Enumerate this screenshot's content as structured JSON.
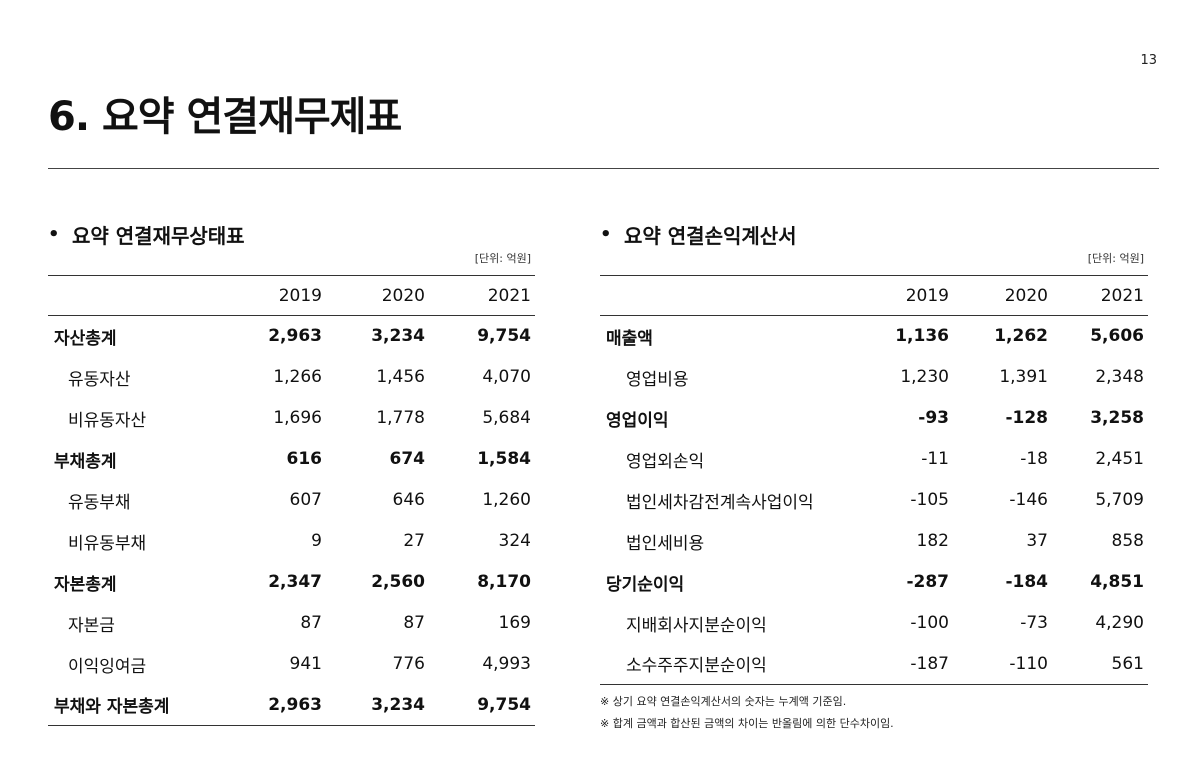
{
  "page_number": "13",
  "title": "6. 요약 연결재무제표",
  "balance_sheet": {
    "heading": "요약 연결재무상태표",
    "unit": "[단위: 억원]",
    "years": [
      "2019",
      "2020",
      "2021"
    ],
    "rows": [
      {
        "label": "자산총계",
        "bold": true,
        "values": [
          "2,963",
          "3,234",
          "9,754"
        ]
      },
      {
        "label": "유동자산",
        "bold": false,
        "values": [
          "1,266",
          "1,456",
          "4,070"
        ]
      },
      {
        "label": "비유동자산",
        "bold": false,
        "values": [
          "1,696",
          "1,778",
          "5,684"
        ]
      },
      {
        "label": "부채총계",
        "bold": true,
        "values": [
          "616",
          "674",
          "1,584"
        ]
      },
      {
        "label": "유동부채",
        "bold": false,
        "values": [
          "607",
          "646",
          "1,260"
        ]
      },
      {
        "label": "비유동부채",
        "bold": false,
        "values": [
          "9",
          "27",
          "324"
        ]
      },
      {
        "label": "자본총계",
        "bold": true,
        "values": [
          "2,347",
          "2,560",
          "8,170"
        ]
      },
      {
        "label": "자본금",
        "bold": false,
        "values": [
          "87",
          "87",
          "169"
        ]
      },
      {
        "label": "이익잉여금",
        "bold": false,
        "values": [
          "941",
          "776",
          "4,993"
        ]
      },
      {
        "label": "부채와 자본총계",
        "bold": true,
        "values": [
          "2,963",
          "3,234",
          "9,754"
        ]
      }
    ]
  },
  "income_statement": {
    "heading": "요약 연결손익계산서",
    "unit": "[단위: 억원]",
    "years": [
      "2019",
      "2020",
      "2021"
    ],
    "rows": [
      {
        "label": "매출액",
        "bold": true,
        "values": [
          "1,136",
          "1,262",
          "5,606"
        ]
      },
      {
        "label": "영업비용",
        "bold": false,
        "values": [
          "1,230",
          "1,391",
          "2,348"
        ]
      },
      {
        "label": "영업이익",
        "bold": true,
        "values": [
          "-93",
          "-128",
          "3,258"
        ]
      },
      {
        "label": "영업외손익",
        "bold": false,
        "values": [
          "-11",
          "-18",
          "2,451"
        ]
      },
      {
        "label": "법인세차감전계속사업이익",
        "bold": false,
        "values": [
          "-105",
          "-146",
          "5,709"
        ]
      },
      {
        "label": "법인세비용",
        "bold": false,
        "values": [
          "182",
          "37",
          "858"
        ]
      },
      {
        "label": "당기순이익",
        "bold": true,
        "values": [
          "-287",
          "-184",
          "4,851"
        ]
      },
      {
        "label": "지배회사지분순이익",
        "bold": false,
        "values": [
          "-100",
          "-73",
          "4,290"
        ]
      },
      {
        "label": "소수주주지분순이익",
        "bold": false,
        "values": [
          "-187",
          "-110",
          "561"
        ]
      }
    ],
    "notes": [
      "※ 상기 요약 연결손익계산서의 숫자는 누계액 기준임.",
      "※ 합계 금액과 합산된 금액의 차이는 반올림에 의한 단수차이임."
    ]
  }
}
